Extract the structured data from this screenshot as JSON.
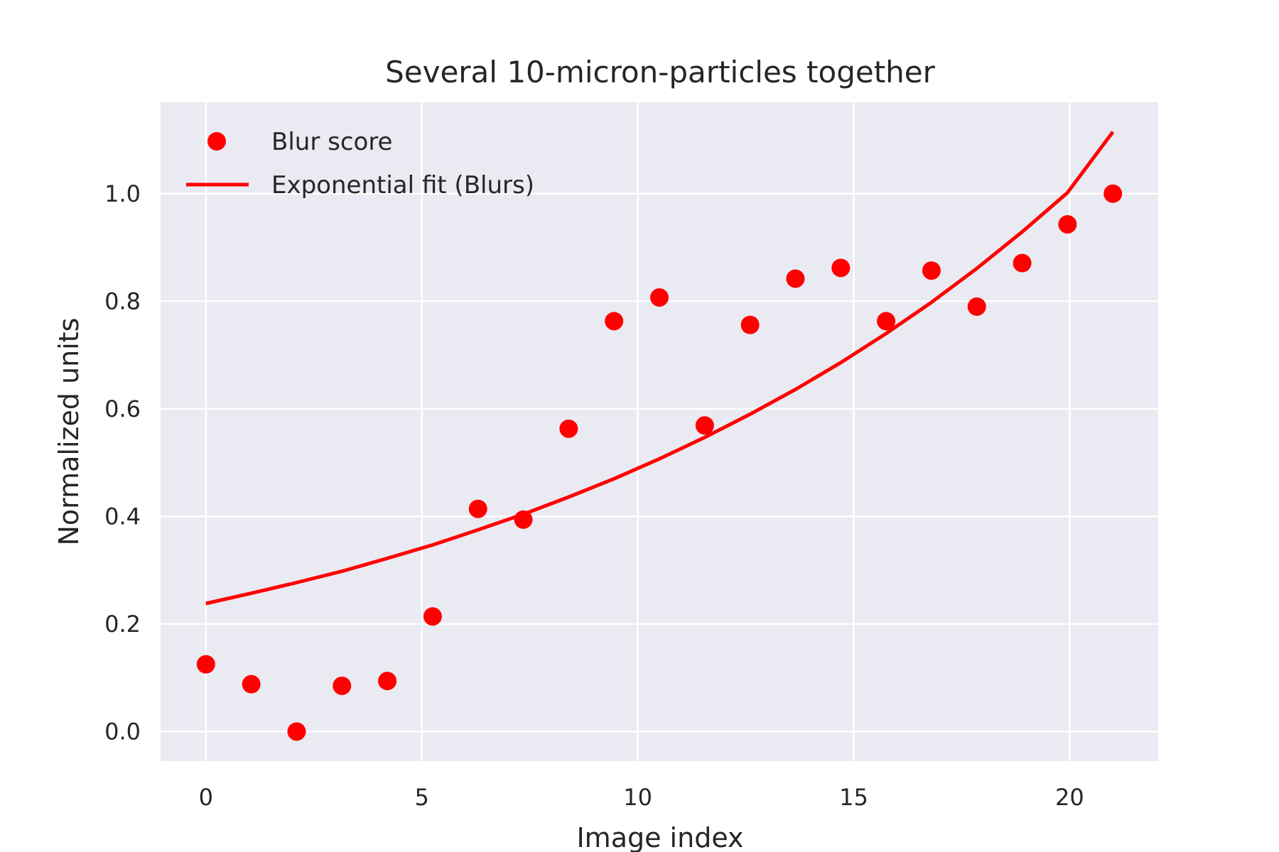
{
  "chart_data": {
    "type": "scatter",
    "title": "Several 10-micron-particles together",
    "xlabel": "Image index",
    "ylabel": "Normalized units",
    "xlim": [
      -1.05,
      22.05
    ],
    "ylim": [
      -0.055,
      1.17
    ],
    "xticks": [
      0,
      5,
      10,
      15,
      20
    ],
    "yticks": [
      0.0,
      0.2,
      0.4,
      0.6,
      0.8,
      1.0
    ],
    "ytick_labels": [
      "0.0",
      "0.2",
      "0.4",
      "0.6",
      "0.8",
      "1.0"
    ],
    "grid": true,
    "legend_position": "top-left",
    "series": [
      {
        "name": "Blur score",
        "kind": "scatter",
        "color": "#ff0000",
        "x": [
          0,
          1.05,
          2.1,
          3.15,
          4.2,
          5.25,
          6.3,
          7.35,
          8.4,
          9.45,
          10.5,
          11.55,
          12.6,
          13.65,
          14.7,
          15.75,
          16.8,
          17.85,
          18.9,
          19.95,
          21.0
        ],
        "y": [
          0.125,
          0.088,
          0.0,
          0.085,
          0.094,
          0.214,
          0.414,
          0.394,
          0.563,
          0.763,
          0.807,
          0.569,
          0.756,
          0.842,
          0.862,
          0.763,
          0.857,
          0.79,
          0.871,
          0.943,
          1.0
        ]
      },
      {
        "name": "Exponential fit (Blurs)",
        "kind": "line",
        "color": "#ff0000",
        "x": [
          0,
          1.05,
          2.1,
          3.15,
          4.2,
          5.25,
          6.3,
          7.35,
          8.4,
          9.45,
          10.5,
          11.55,
          12.6,
          13.65,
          14.7,
          15.75,
          16.8,
          17.85,
          18.9,
          19.95,
          21.0
        ],
        "y": [
          0.238,
          0.257,
          0.277,
          0.298,
          0.322,
          0.347,
          0.375,
          0.404,
          0.436,
          0.47,
          0.507,
          0.547,
          0.59,
          0.636,
          0.686,
          0.74,
          0.798,
          0.861,
          0.929,
          1.002,
          1.115
        ]
      }
    ]
  }
}
